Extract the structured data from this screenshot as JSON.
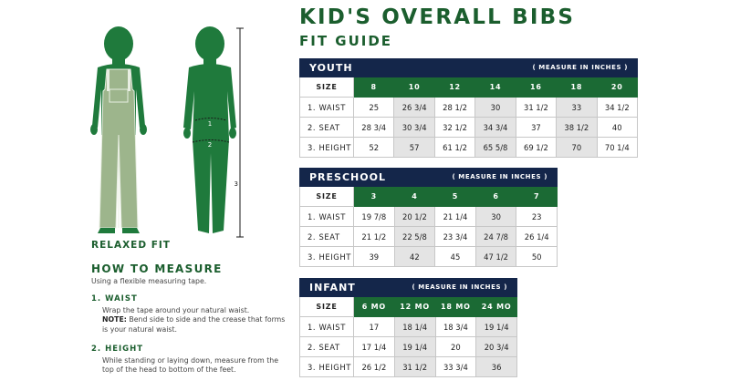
{
  "title": "KID'S OVERALL BIBS",
  "subtitle": "FIT GUIDE",
  "figure": {
    "relaxed_label": "RELAXED FIT",
    "marker_1": "1",
    "marker_2": "2",
    "marker_3": "3"
  },
  "how_to": {
    "heading": "HOW TO MEASURE",
    "subheading": "Using a flexible measuring tape.",
    "steps": [
      {
        "title": "1.  WAIST",
        "text": "Wrap the tape around your natural waist.",
        "note_label": "NOTE:",
        "note": " Bend side to side and the crease that forms is your natural waist."
      },
      {
        "title": "2.  HEIGHT",
        "text": "While standing or laying down, measure from the top of the head to bottom of the feet."
      }
    ]
  },
  "tables": [
    {
      "name": "YOUTH",
      "note": "( MEASURE IN INCHES )",
      "size_label": "SIZE",
      "sizes": [
        "8",
        "10",
        "12",
        "14",
        "16",
        "18",
        "20"
      ],
      "rows": [
        {
          "label": "1.  WAIST",
          "values": [
            "25",
            "26 3/4",
            "28 1/2",
            "30",
            "31 1/2",
            "33",
            "34 1/2"
          ]
        },
        {
          "label": "2.  SEAT",
          "values": [
            "28 3/4",
            "30 3/4",
            "32 1/2",
            "34 3/4",
            "37",
            "38 1/2",
            "40"
          ]
        },
        {
          "label": "3.  HEIGHT",
          "values": [
            "52",
            "57",
            "61 1/2",
            "65 5/8",
            "69 1/2",
            "70",
            "70 1/4"
          ]
        }
      ]
    },
    {
      "name": "PRESCHOOL",
      "note": "( MEASURE IN INCHES )",
      "size_label": "SIZE",
      "sizes": [
        "3",
        "4",
        "5",
        "6",
        "7"
      ],
      "rows": [
        {
          "label": "1.  WAIST",
          "values": [
            "19 7/8",
            "20 1/2",
            "21 1/4",
            "30",
            "23"
          ]
        },
        {
          "label": "2.  SEAT",
          "values": [
            "21 1/2",
            "22 5/8",
            "23 3/4",
            "24 7/8",
            "26 1/4"
          ]
        },
        {
          "label": "3.  HEIGHT",
          "values": [
            "39",
            "42",
            "45",
            "47 1/2",
            "50"
          ]
        }
      ]
    },
    {
      "name": "INFANT",
      "note": "( MEASURE IN INCHES )",
      "size_label": "SIZE",
      "sizes": [
        "6 MO",
        "12 MO",
        "18 MO",
        "24 MO"
      ],
      "rows": [
        {
          "label": "1.  WAIST",
          "values": [
            "17",
            "18 1/4",
            "18 3/4",
            "19 1/4"
          ]
        },
        {
          "label": "2.  SEAT",
          "values": [
            "17 1/4",
            "19 1/4",
            "20",
            "20 3/4"
          ]
        },
        {
          "label": "3.  HEIGHT",
          "values": [
            "26 1/2",
            "31 1/2",
            "33 3/4",
            "36"
          ]
        }
      ]
    }
  ],
  "colors": {
    "navy": "#14264a",
    "green": "#1b6a34",
    "figure_green": "#1f7a3c",
    "pants_green": "#9db58c",
    "shade": "#e4e4e4"
  }
}
